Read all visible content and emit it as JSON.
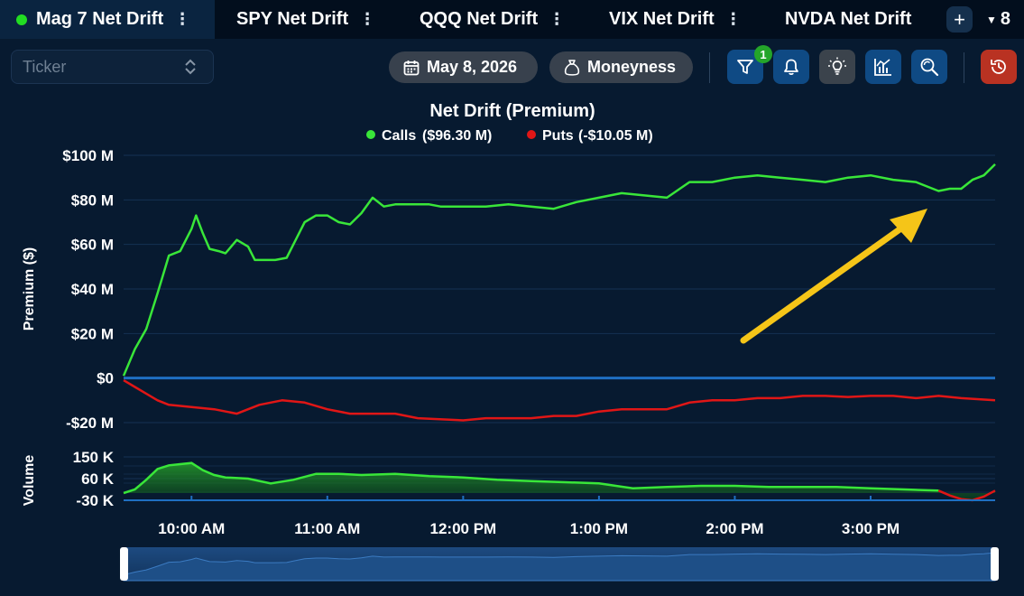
{
  "tabs": [
    {
      "label": "Mag 7 Net Drift",
      "active": true
    },
    {
      "label": "SPY Net Drift",
      "active": false
    },
    {
      "label": "QQQ Net Drift",
      "active": false
    },
    {
      "label": "VIX Net Drift",
      "active": false
    },
    {
      "label": "NVDA Net Drift",
      "active": false
    }
  ],
  "tab_menu_glyph": "⋮",
  "add_tab_glyph": "+",
  "tab_count": "8",
  "toolbar": {
    "ticker_placeholder": "Ticker",
    "date_label": "May 8, 2026",
    "moneyness_label": "Moneyness",
    "filter_badge": "1"
  },
  "icons": [
    "calendar-icon",
    "moneybag-icon",
    "filter-icon",
    "bell-icon",
    "bulb-icon",
    "chart-icon",
    "zoom-icon",
    "history-icon"
  ],
  "colors": {
    "calls": "#39e639",
    "puts": "#e01616",
    "arrow": "#f5c518",
    "accent": "#0f4a84"
  },
  "chart_data": [
    {
      "type": "line",
      "title": "Net Drift (Premium)",
      "ylabel": "Premium ($)",
      "ylim": [
        -20000000,
        100000000
      ],
      "yticks": [
        100000000,
        80000000,
        60000000,
        40000000,
        20000000,
        0,
        -20000000
      ],
      "ytick_labels": [
        "$100 M",
        "$80 M",
        "$60 M",
        "$40 M",
        "$20 M",
        "$0",
        "-$20 M"
      ],
      "x_unit": "time of day (ET)",
      "legend": [
        {
          "name": "Calls",
          "value_label": "($96.30 M)"
        },
        {
          "name": "Puts",
          "value_label": "(-$10.05 M)"
        }
      ],
      "legend_position": "top-center",
      "series": [
        {
          "name": "Calls",
          "x": [
            "9:30",
            "9:35",
            "9:40",
            "9:45",
            "9:50",
            "9:55",
            "10:00",
            "10:02",
            "10:05",
            "10:08",
            "10:12",
            "10:15",
            "10:20",
            "10:25",
            "10:28",
            "10:32",
            "10:37",
            "10:42",
            "10:45",
            "10:50",
            "10:55",
            "11:00",
            "11:05",
            "11:10",
            "11:15",
            "11:20",
            "11:25",
            "11:30",
            "11:35",
            "11:40",
            "11:45",
            "11:50",
            "12:00",
            "12:10",
            "12:20",
            "12:30",
            "12:40",
            "12:50",
            "13:00",
            "13:10",
            "13:20",
            "13:30",
            "13:40",
            "13:50",
            "14:00",
            "14:10",
            "14:20",
            "14:30",
            "14:40",
            "14:50",
            "15:00",
            "15:10",
            "15:20",
            "15:30",
            "15:35",
            "15:40",
            "15:45",
            "15:50",
            "15:55"
          ],
          "y": [
            1000000,
            13000000,
            22000000,
            38000000,
            55000000,
            57000000,
            67000000,
            73000000,
            65000000,
            58000000,
            57000000,
            56000000,
            62000000,
            59000000,
            53000000,
            53000000,
            53000000,
            54000000,
            60000000,
            70000000,
            73000000,
            73000000,
            70000000,
            69000000,
            74000000,
            81000000,
            77000000,
            78000000,
            78000000,
            78000000,
            78000000,
            77000000,
            77000000,
            77000000,
            78000000,
            77000000,
            76000000,
            79000000,
            81000000,
            83000000,
            82000000,
            81000000,
            88000000,
            88000000,
            90000000,
            91000000,
            90000000,
            89000000,
            88000000,
            90000000,
            91000000,
            89000000,
            88000000,
            84000000,
            85000000,
            85000000,
            89000000,
            91000000,
            96000000
          ]
        },
        {
          "name": "Puts",
          "x": [
            "9:30",
            "9:35",
            "9:40",
            "9:45",
            "9:50",
            "10:00",
            "10:10",
            "10:20",
            "10:30",
            "10:40",
            "10:50",
            "11:00",
            "11:10",
            "11:20",
            "11:30",
            "11:40",
            "12:00",
            "12:10",
            "12:20",
            "12:30",
            "12:40",
            "12:50",
            "13:00",
            "13:10",
            "13:20",
            "13:30",
            "13:40",
            "13:50",
            "14:00",
            "14:10",
            "14:20",
            "14:30",
            "14:40",
            "14:50",
            "15:00",
            "15:10",
            "15:20",
            "15:30",
            "15:40",
            "15:55"
          ],
          "y": [
            -1000000,
            -4000000,
            -7000000,
            -10000000,
            -12000000,
            -13000000,
            -14000000,
            -16000000,
            -12000000,
            -10000000,
            -11000000,
            -14000000,
            -16000000,
            -16000000,
            -16000000,
            -18000000,
            -19000000,
            -18000000,
            -18000000,
            -18000000,
            -17000000,
            -17000000,
            -15000000,
            -14000000,
            -14000000,
            -14000000,
            -11000000,
            -10000000,
            -10000000,
            -9000000,
            -9000000,
            -8000000,
            -8000000,
            -8500000,
            -8000000,
            -8000000,
            -9000000,
            -8000000,
            -9000000,
            -10000000
          ]
        }
      ],
      "annotation": "upward arrow toward the end-of-day Calls line"
    },
    {
      "type": "area",
      "ylabel": "Volume",
      "ylim": [
        -30000,
        150000
      ],
      "yticks": [
        150000,
        60000,
        -30000
      ],
      "ytick_labels": [
        "150 K",
        "60 K",
        "-30 K"
      ],
      "xtick_labels": [
        "10:00 AM",
        "11:00 AM",
        "12:00 PM",
        "1:00 PM",
        "2:00 PM",
        "3:00 PM"
      ],
      "series": [
        {
          "name": "Volume",
          "x": [
            "9:30",
            "9:35",
            "9:40",
            "9:45",
            "9:50",
            "9:55",
            "10:00",
            "10:05",
            "10:10",
            "10:15",
            "10:25",
            "10:35",
            "10:45",
            "10:55",
            "11:05",
            "11:15",
            "11:30",
            "11:45",
            "12:00",
            "12:15",
            "12:30",
            "12:45",
            "13:00",
            "13:15",
            "13:30",
            "13:45",
            "14:00",
            "14:15",
            "14:30",
            "14:45",
            "15:00",
            "15:15",
            "15:30",
            "15:35",
            "15:40",
            "15:45",
            "15:50",
            "15:55"
          ],
          "y": [
            0,
            15000,
            55000,
            100000,
            115000,
            120000,
            125000,
            95000,
            75000,
            65000,
            60000,
            40000,
            55000,
            80000,
            80000,
            75000,
            80000,
            70000,
            65000,
            55000,
            50000,
            45000,
            40000,
            20000,
            25000,
            30000,
            30000,
            25000,
            25000,
            25000,
            20000,
            15000,
            10000,
            -10000,
            -25000,
            -30000,
            -15000,
            10000
          ]
        }
      ]
    }
  ]
}
